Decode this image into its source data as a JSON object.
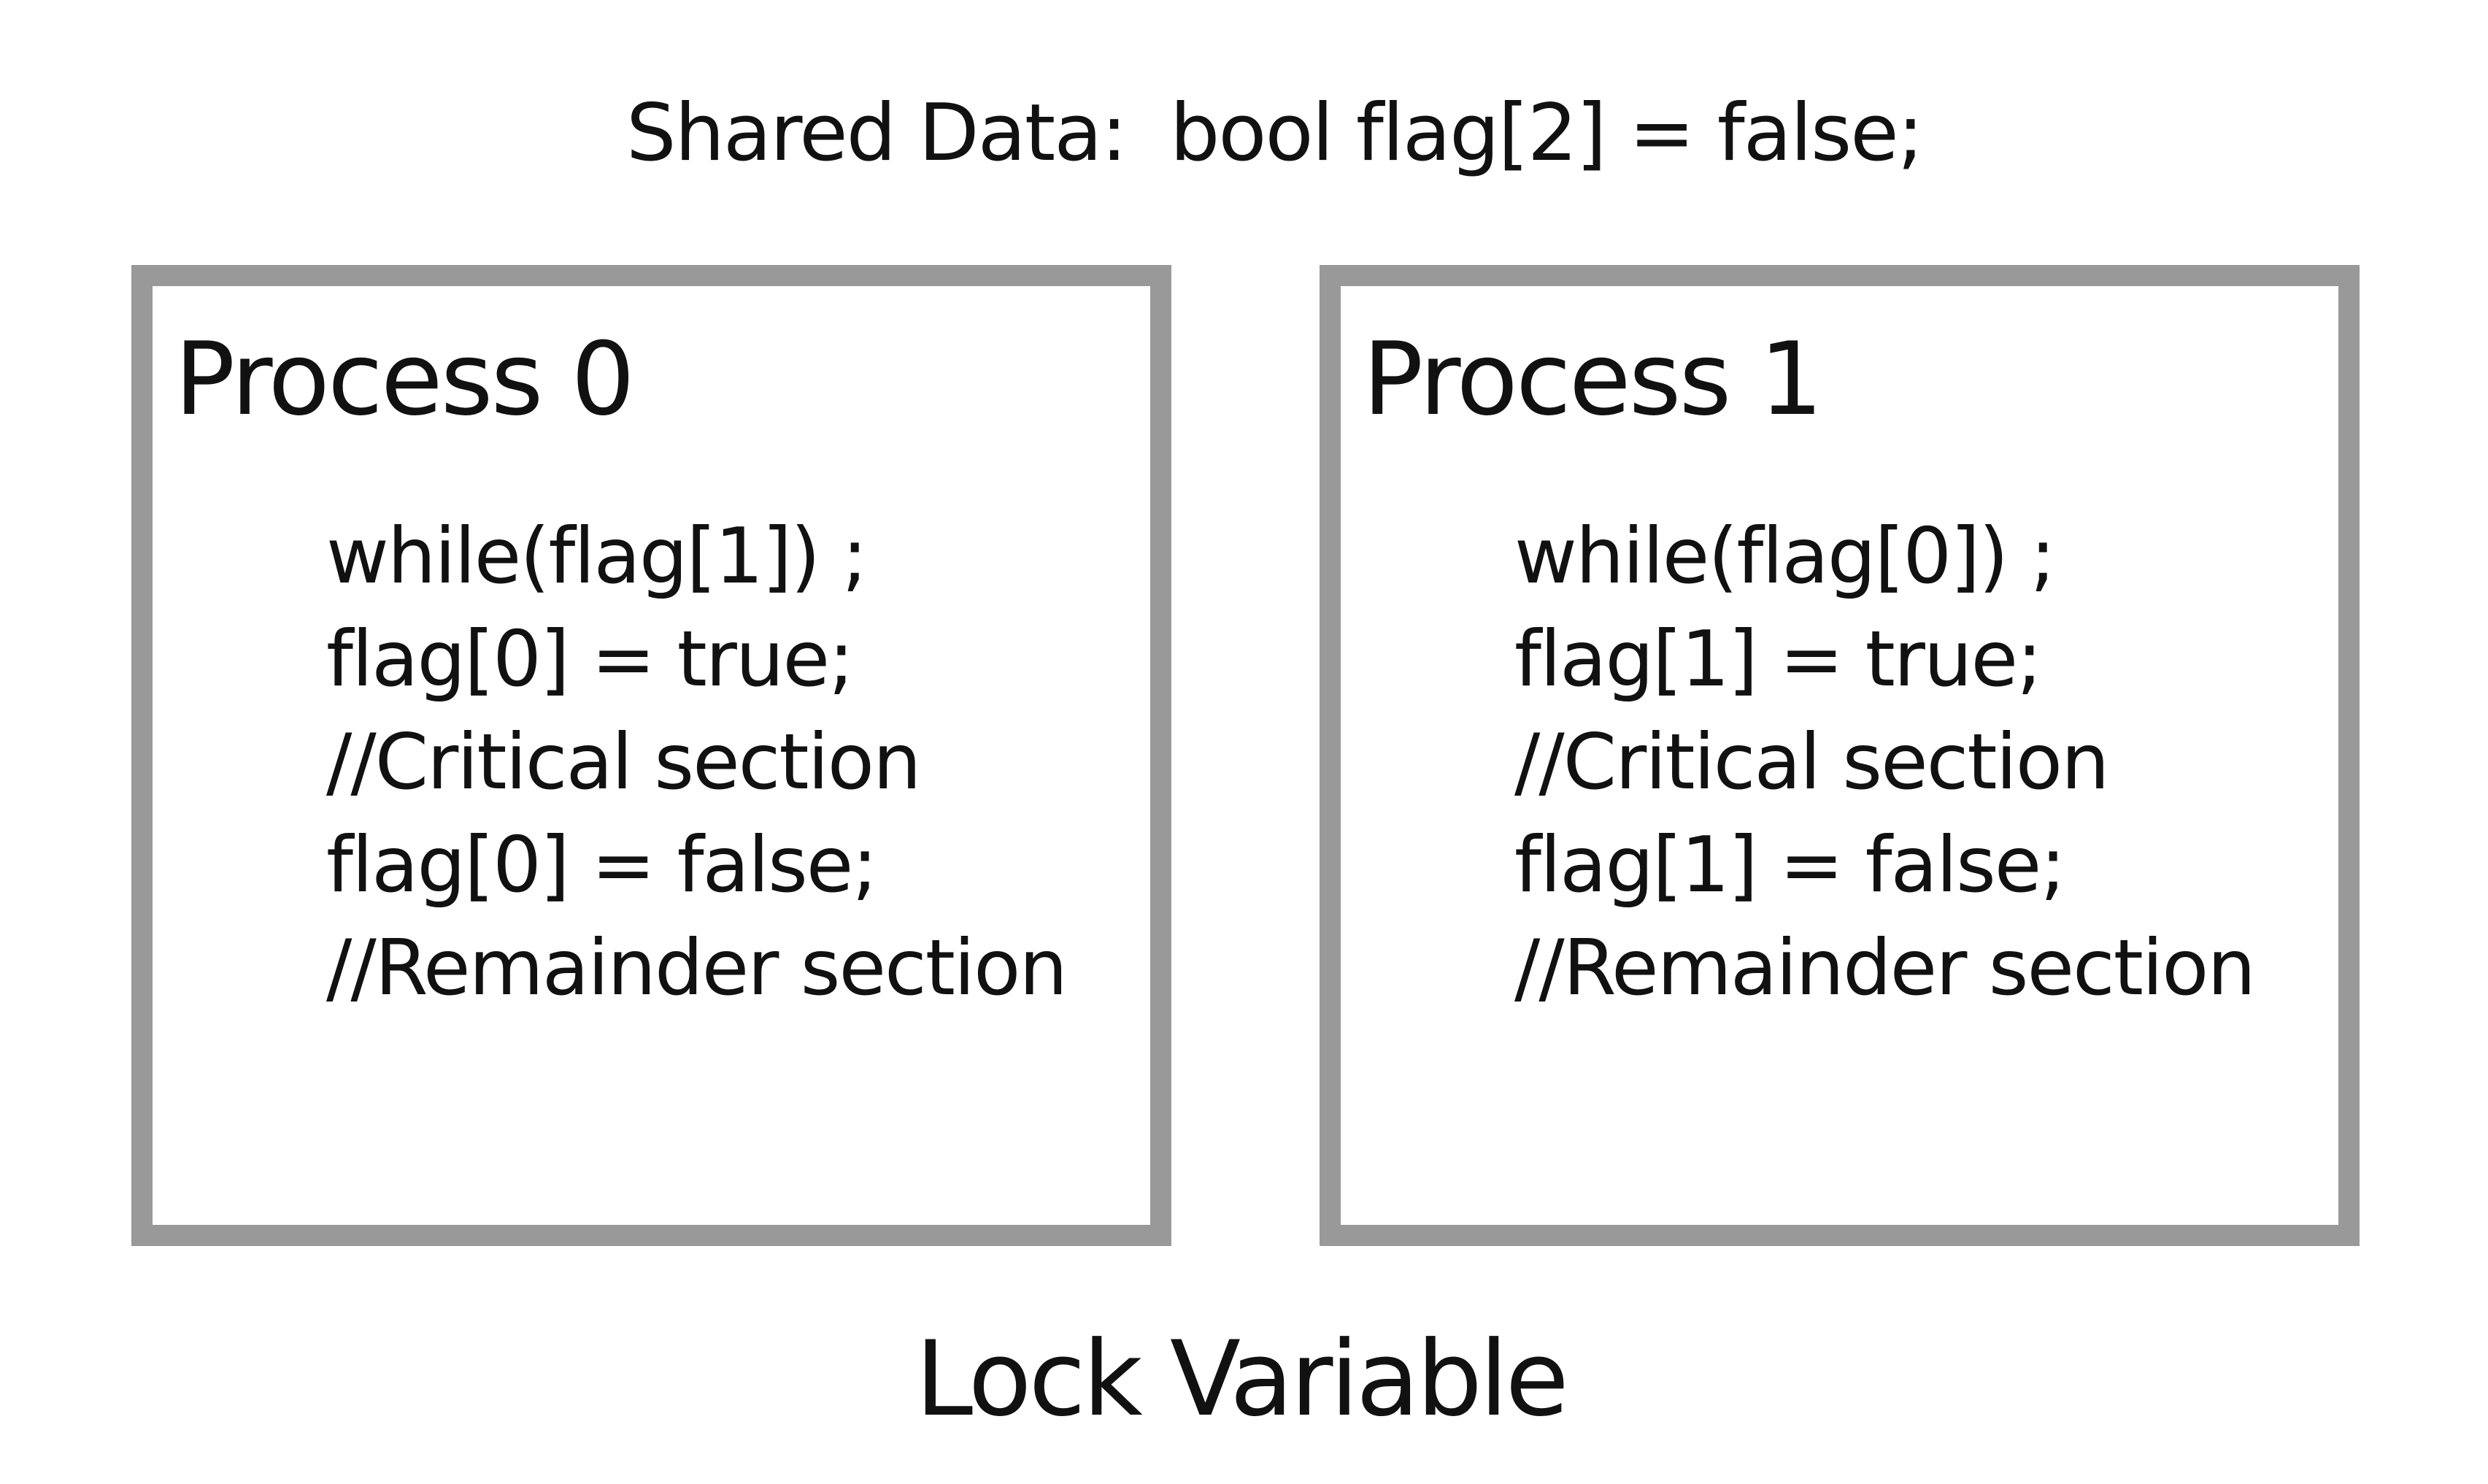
{
  "shared_data": {
    "label": "Shared Data:",
    "declaration": "bool flag[2] = false;"
  },
  "processes": [
    {
      "title": "Process 0",
      "code": [
        "while(flag[1]) ;",
        "flag[0] = true;",
        "//Critical section",
        "flag[0] = false;",
        "//Remainder section"
      ]
    },
    {
      "title": "Process 1",
      "code": [
        "while(flag[0]) ;",
        "flag[1] = true;",
        "//Critical section",
        "flag[1] = false;",
        "//Remainder section"
      ]
    }
  ],
  "diagram_title": "Lock Variable",
  "colors": {
    "box_border": "#999999",
    "text": "#111111",
    "background": "#ffffff"
  }
}
